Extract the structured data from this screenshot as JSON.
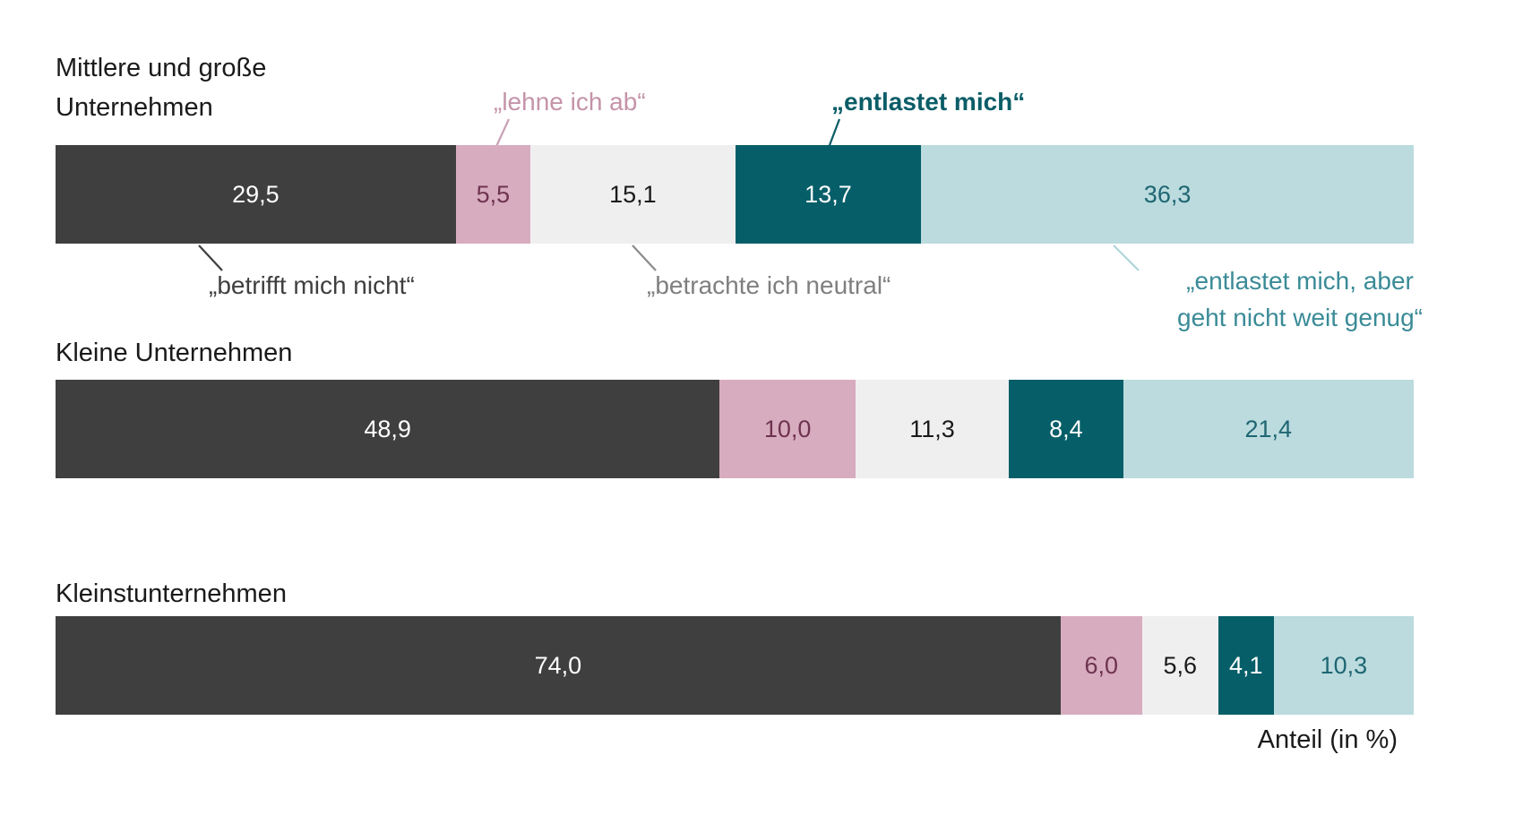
{
  "chart_data": {
    "type": "bar",
    "orientation": "horizontal",
    "stacked": true,
    "grid": false,
    "legend_position": "callout-annotations",
    "xlabel": "Anteil (in %)",
    "xlim": [
      0,
      100
    ],
    "categories": [
      {
        "name": "betrifft mich nicht",
        "color": "#3F3F3F",
        "text_color": "#FFFFFF"
      },
      {
        "name": "lehne ich ab",
        "color": "#D8ACBF",
        "text_color": "#6E3350"
      },
      {
        "name": "betrachte ich neutral",
        "color": "#F0EFEF",
        "text_color": "#1A1A1A"
      },
      {
        "name": "entlastet mich",
        "color": "#065E68",
        "text_color": "#FFFFFF"
      },
      {
        "name": "entlastet mich, aber geht nicht weit genug",
        "color": "#BBDBDE",
        "text_color": "#1E6672"
      }
    ],
    "rows": [
      {
        "label": "Mittlere und große Unternehmen",
        "values": [
          29.5,
          5.5,
          15.1,
          13.7,
          36.3
        ],
        "value_labels": [
          "29,5",
          "5,5",
          "15,1",
          "13,7",
          "36,3"
        ]
      },
      {
        "label": "Kleine Unternehmen",
        "values": [
          48.9,
          10.0,
          11.3,
          8.4,
          21.4
        ],
        "value_labels": [
          "48,9",
          "10,0",
          "11,3",
          "8,4",
          "21,4"
        ]
      },
      {
        "label": "Kleinstunternehmen",
        "values": [
          74.0,
          6.0,
          5.6,
          4.1,
          10.3
        ],
        "value_labels": [
          "74,0",
          "6,0",
          "5,6",
          "4,1",
          "10,3"
        ]
      }
    ]
  },
  "annotations": {
    "lehne_ab": {
      "text": "„lehne ich ab“",
      "color": "#C493A9"
    },
    "entlastet": {
      "text": "„entlastet mich“",
      "color": "#0B5D67"
    },
    "betrifft_nicht": {
      "text": "„betrifft mich nicht“",
      "color": "#3F3F3F"
    },
    "neutral": {
      "text": "„betrachte ich neutral“",
      "color": "#7F7F7F"
    },
    "entlastet_aber": {
      "line1": "„entlastet mich, aber",
      "line2": "geht nicht weit genug“",
      "color": "#3A8B97"
    },
    "axis_note": {
      "text": "Anteil (in %)",
      "color": "#1A1A1A"
    }
  }
}
